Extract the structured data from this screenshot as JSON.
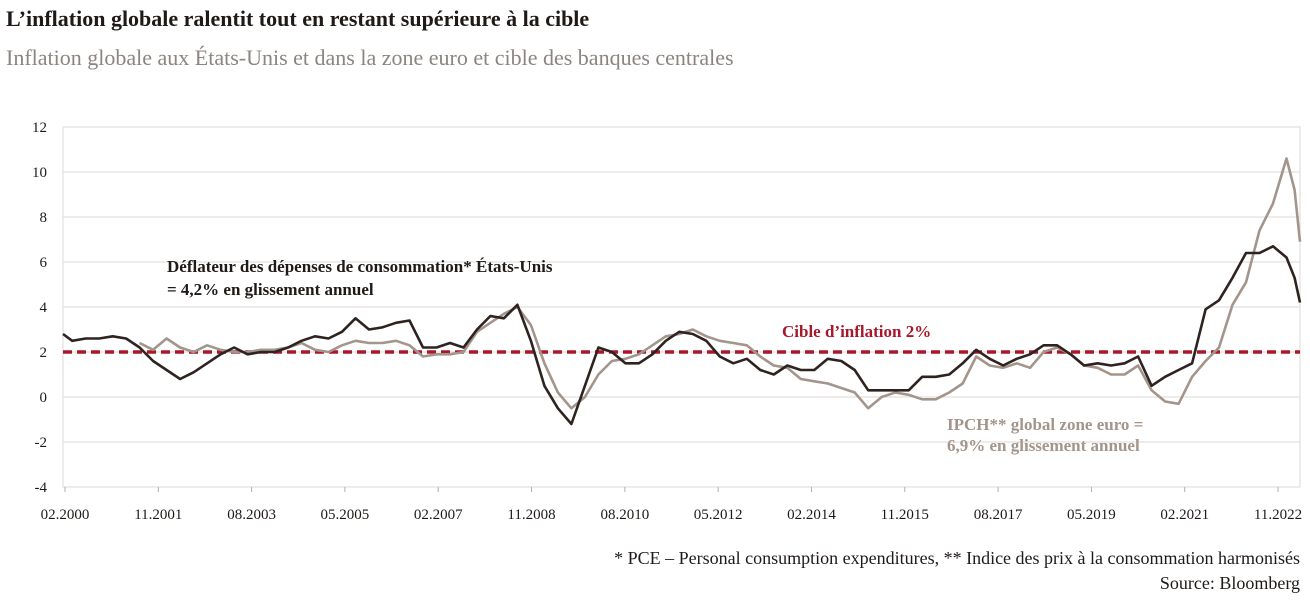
{
  "title": "L’inflation globale ralentit tout en restant supérieure à la cible",
  "subtitle": "Inflation globale aux États-Unis et dans la zone euro et cible des banques centrales",
  "footnote": "* PCE – Personal consumption expenditures, ** Indice des prix à la consommation harmonisés",
  "source": "Source: Bloomberg",
  "colors": {
    "us": "#2e2320",
    "ez": "#a3958c",
    "target": "#a8182b",
    "grid": "#dedad6",
    "axis": "#b4ada8"
  },
  "annotations": {
    "us_line1": "Déflateur des dépenses de consommation* États-Unis",
    "us_line2": "= 4,2% en glissement annuel",
    "target": "Cible d’inflation 2%",
    "ez_line1": "IPCH** global zone euro =",
    "ez_line2": "6,9% en glissement annuel"
  },
  "chart_data": {
    "type": "line",
    "title": "L’inflation globale ralentit tout en restant supérieure à la cible",
    "subtitle": "Inflation globale aux États-Unis et dans la zone euro et cible des banques centrales",
    "xlabel": "",
    "ylabel": "",
    "x_range": [
      "02.2000",
      "11.2022"
    ],
    "ylim": [
      -4,
      12
    ],
    "yticks": [
      -4,
      -2,
      0,
      2,
      4,
      6,
      8,
      10,
      12
    ],
    "xticks": [
      "02.2000",
      "11.2001",
      "08.2003",
      "05.2005",
      "02.2007",
      "11.2008",
      "08.2010",
      "05.2012",
      "02.2014",
      "11.2015",
      "08.2017",
      "05.2019",
      "02.2021",
      "11.2022"
    ],
    "grid": "horizontal",
    "target": {
      "value": 2,
      "label": "Cible d’inflation 2%"
    },
    "series": [
      {
        "key": "us",
        "note": "Déflateur des dépenses de consommation* États-Unis = 4,2% en glissement annuel",
        "points": [
          [
            "2000.08",
            2.8
          ],
          [
            "2000.25",
            2.5
          ],
          [
            "2000.5",
            2.6
          ],
          [
            "2000.75",
            2.6
          ],
          [
            "2001.0",
            2.7
          ],
          [
            "2001.25",
            2.6
          ],
          [
            "2001.5",
            2.2
          ],
          [
            "2001.75",
            1.6
          ],
          [
            "2002.0",
            1.2
          ],
          [
            "2002.25",
            0.8
          ],
          [
            "2002.5",
            1.1
          ],
          [
            "2002.75",
            1.5
          ],
          [
            "2003.0",
            1.9
          ],
          [
            "2003.25",
            2.2
          ],
          [
            "2003.5",
            1.9
          ],
          [
            "2003.75",
            2.0
          ],
          [
            "2004.0",
            2.0
          ],
          [
            "2004.25",
            2.2
          ],
          [
            "2004.5",
            2.5
          ],
          [
            "2004.75",
            2.7
          ],
          [
            "2005.0",
            2.6
          ],
          [
            "2005.25",
            2.9
          ],
          [
            "2005.5",
            3.5
          ],
          [
            "2005.75",
            3.0
          ],
          [
            "2006.0",
            3.1
          ],
          [
            "2006.25",
            3.3
          ],
          [
            "2006.5",
            3.4
          ],
          [
            "2006.75",
            2.2
          ],
          [
            "2007.0",
            2.2
          ],
          [
            "2007.25",
            2.4
          ],
          [
            "2007.5",
            2.2
          ],
          [
            "2007.75",
            3.0
          ],
          [
            "2008.0",
            3.6
          ],
          [
            "2008.25",
            3.5
          ],
          [
            "2008.5",
            4.1
          ],
          [
            "2008.75",
            2.5
          ],
          [
            "2009.0",
            0.5
          ],
          [
            "2009.25",
            -0.5
          ],
          [
            "2009.5",
            -1.2
          ],
          [
            "2009.75",
            0.5
          ],
          [
            "2010.0",
            2.2
          ],
          [
            "2010.25",
            2.0
          ],
          [
            "2010.5",
            1.5
          ],
          [
            "2010.75",
            1.5
          ],
          [
            "2011.0",
            1.9
          ],
          [
            "2011.25",
            2.5
          ],
          [
            "2011.5",
            2.9
          ],
          [
            "2011.75",
            2.8
          ],
          [
            "2012.0",
            2.5
          ],
          [
            "2012.25",
            1.8
          ],
          [
            "2012.5",
            1.5
          ],
          [
            "2012.75",
            1.7
          ],
          [
            "2013.0",
            1.2
          ],
          [
            "2013.25",
            1.0
          ],
          [
            "2013.5",
            1.4
          ],
          [
            "2013.75",
            1.2
          ],
          [
            "2014.0",
            1.2
          ],
          [
            "2014.25",
            1.7
          ],
          [
            "2014.5",
            1.6
          ],
          [
            "2014.75",
            1.2
          ],
          [
            "2015.0",
            0.3
          ],
          [
            "2015.25",
            0.3
          ],
          [
            "2015.5",
            0.3
          ],
          [
            "2015.75",
            0.3
          ],
          [
            "2016.0",
            0.9
          ],
          [
            "2016.25",
            0.9
          ],
          [
            "2016.5",
            1.0
          ],
          [
            "2016.75",
            1.5
          ],
          [
            "2017.0",
            2.1
          ],
          [
            "2017.25",
            1.7
          ],
          [
            "2017.5",
            1.4
          ],
          [
            "2017.75",
            1.7
          ],
          [
            "2018.0",
            1.9
          ],
          [
            "2018.25",
            2.3
          ],
          [
            "2018.5",
            2.3
          ],
          [
            "2018.75",
            1.9
          ],
          [
            "2019.0",
            1.4
          ],
          [
            "2019.25",
            1.5
          ],
          [
            "2019.5",
            1.4
          ],
          [
            "2019.75",
            1.5
          ],
          [
            "2020.0",
            1.8
          ],
          [
            "2020.25",
            0.5
          ],
          [
            "2020.5",
            0.9
          ],
          [
            "2020.75",
            1.2
          ],
          [
            "2021.0",
            1.5
          ],
          [
            "2021.25",
            3.9
          ],
          [
            "2021.5",
            4.3
          ],
          [
            "2021.75",
            5.3
          ],
          [
            "2022.0",
            6.4
          ],
          [
            "2022.25",
            6.4
          ],
          [
            "2022.5",
            6.7
          ],
          [
            "2022.75",
            6.2
          ],
          [
            "2022.9",
            5.3
          ],
          [
            "2023.0",
            4.2
          ]
        ]
      },
      {
        "key": "ez",
        "note": "IPCH** global zone euro = 6,9% en glissement annuel",
        "points": [
          [
            "2001.5",
            2.4
          ],
          [
            "2001.75",
            2.1
          ],
          [
            "2002.0",
            2.6
          ],
          [
            "2002.25",
            2.2
          ],
          [
            "2002.5",
            2.0
          ],
          [
            "2002.75",
            2.3
          ],
          [
            "2003.0",
            2.1
          ],
          [
            "2003.25",
            2.0
          ],
          [
            "2003.5",
            2.0
          ],
          [
            "2003.75",
            2.1
          ],
          [
            "2004.0",
            2.1
          ],
          [
            "2004.25",
            2.2
          ],
          [
            "2004.5",
            2.4
          ],
          [
            "2004.75",
            2.1
          ],
          [
            "2005.0",
            2.0
          ],
          [
            "2005.25",
            2.3
          ],
          [
            "2005.5",
            2.5
          ],
          [
            "2005.75",
            2.4
          ],
          [
            "2006.0",
            2.4
          ],
          [
            "2006.25",
            2.5
          ],
          [
            "2006.5",
            2.3
          ],
          [
            "2006.75",
            1.8
          ],
          [
            "2007.0",
            1.9
          ],
          [
            "2007.25",
            1.9
          ],
          [
            "2007.5",
            2.0
          ],
          [
            "2007.75",
            2.9
          ],
          [
            "2008.0",
            3.3
          ],
          [
            "2008.25",
            3.7
          ],
          [
            "2008.5",
            4.0
          ],
          [
            "2008.75",
            3.2
          ],
          [
            "2009.0",
            1.5
          ],
          [
            "2009.25",
            0.2
          ],
          [
            "2009.5",
            -0.5
          ],
          [
            "2009.75",
            0.0
          ],
          [
            "2010.0",
            1.0
          ],
          [
            "2010.25",
            1.6
          ],
          [
            "2010.5",
            1.7
          ],
          [
            "2010.75",
            1.9
          ],
          [
            "2011.0",
            2.3
          ],
          [
            "2011.25",
            2.7
          ],
          [
            "2011.5",
            2.8
          ],
          [
            "2011.75",
            3.0
          ],
          [
            "2012.0",
            2.7
          ],
          [
            "2012.25",
            2.5
          ],
          [
            "2012.5",
            2.4
          ],
          [
            "2012.75",
            2.3
          ],
          [
            "2013.0",
            1.8
          ],
          [
            "2013.25",
            1.4
          ],
          [
            "2013.5",
            1.3
          ],
          [
            "2013.75",
            0.8
          ],
          [
            "2014.0",
            0.7
          ],
          [
            "2014.25",
            0.6
          ],
          [
            "2014.5",
            0.4
          ],
          [
            "2014.75",
            0.2
          ],
          [
            "2015.0",
            -0.5
          ],
          [
            "2015.25",
            0.0
          ],
          [
            "2015.5",
            0.2
          ],
          [
            "2015.75",
            0.1
          ],
          [
            "2016.0",
            -0.1
          ],
          [
            "2016.25",
            -0.1
          ],
          [
            "2016.5",
            0.2
          ],
          [
            "2016.75",
            0.6
          ],
          [
            "2017.0",
            1.8
          ],
          [
            "2017.25",
            1.4
          ],
          [
            "2017.5",
            1.3
          ],
          [
            "2017.75",
            1.5
          ],
          [
            "2018.0",
            1.3
          ],
          [
            "2018.25",
            2.0
          ],
          [
            "2018.5",
            2.2
          ],
          [
            "2018.75",
            1.9
          ],
          [
            "2019.0",
            1.4
          ],
          [
            "2019.25",
            1.3
          ],
          [
            "2019.5",
            1.0
          ],
          [
            "2019.75",
            1.0
          ],
          [
            "2020.0",
            1.4
          ],
          [
            "2020.25",
            0.3
          ],
          [
            "2020.5",
            -0.2
          ],
          [
            "2020.75",
            -0.3
          ],
          [
            "2021.0",
            0.9
          ],
          [
            "2021.25",
            1.6
          ],
          [
            "2021.5",
            2.2
          ],
          [
            "2021.75",
            4.1
          ],
          [
            "2022.0",
            5.1
          ],
          [
            "2022.25",
            7.4
          ],
          [
            "2022.5",
            8.6
          ],
          [
            "2022.75",
            10.6
          ],
          [
            "2022.9",
            9.2
          ],
          [
            "2023.0",
            6.9
          ]
        ]
      }
    ]
  }
}
